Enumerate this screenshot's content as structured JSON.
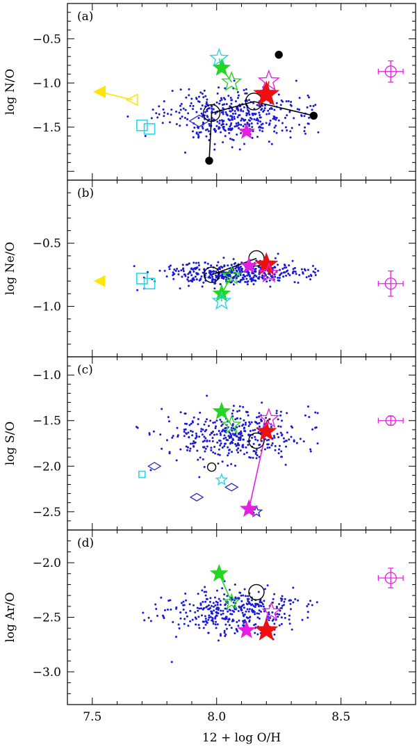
{
  "chart_data": {
    "type": "scatter",
    "xlabel": "12 + log O/H",
    "xlim": [
      7.4,
      8.8
    ],
    "xticks": [
      7.5,
      8.0,
      8.5
    ],
    "xtick_labels": [
      "7.5",
      "8.0",
      "8.5"
    ],
    "colors": {
      "background_points": "#1a1ad6",
      "black": "#000000",
      "cyan": "#22d8e8",
      "green": "#22d622",
      "magenta": "#e620e0",
      "red": "#ee1010",
      "yellow": "#ffe600",
      "navy": "#2a2ac8"
    },
    "panels": [
      {
        "tag": "(a)",
        "ylabel": "log N/O",
        "ylim": [
          -2.1,
          -0.1
        ],
        "yticks": [
          -1.5,
          -1.0,
          -0.5
        ],
        "ytick_labels": [
          "−1.5",
          "−1.0",
          "−0.5"
        ],
        "cloud": {
          "center": -1.38,
          "spread": 0.14,
          "count": 420,
          "seed": 11
        },
        "markers": [
          {
            "id": "yellow-arrow-filled",
            "shape": "triangle-left",
            "filled": true,
            "color": "yellow",
            "x": 7.53,
            "y": -1.1,
            "size": 14
          },
          {
            "id": "yellow-arrow-open",
            "shape": "triangle-left",
            "filled": false,
            "color": "yellow",
            "x": 7.66,
            "y": -1.19,
            "size": 14
          },
          {
            "id": "cyan-square-1",
            "shape": "square",
            "filled": false,
            "color": "cyan",
            "x": 7.7,
            "y": -1.48,
            "size": 15
          },
          {
            "id": "cyan-square-2",
            "shape": "square",
            "filled": false,
            "color": "cyan",
            "x": 7.73,
            "y": -1.52,
            "size": 15
          },
          {
            "id": "navy-diamond",
            "shape": "diamond",
            "filled": false,
            "color": "navy",
            "x": 7.93,
            "y": -1.43,
            "size": 14
          },
          {
            "id": "black-circle-1",
            "shape": "circle",
            "filled": false,
            "color": "black",
            "x": 7.98,
            "y": -1.34,
            "size": 12
          },
          {
            "id": "black-circle-2",
            "shape": "circle",
            "filled": false,
            "color": "black",
            "x": 8.15,
            "y": -1.21,
            "size": 12
          },
          {
            "id": "black-dot-1",
            "shape": "circle",
            "filled": true,
            "color": "black",
            "x": 7.97,
            "y": -1.88,
            "size": 5
          },
          {
            "id": "black-dot-2",
            "shape": "circle",
            "filled": true,
            "color": "black",
            "x": 8.39,
            "y": -1.37,
            "size": 5
          },
          {
            "id": "black-dot-3",
            "shape": "circle",
            "filled": true,
            "color": "black",
            "x": 8.25,
            "y": -0.68,
            "size": 5
          },
          {
            "id": "cyan-star",
            "shape": "star",
            "filled": false,
            "color": "cyan",
            "x": 8.01,
            "y": -0.72,
            "size": 13
          },
          {
            "id": "green-star-filled",
            "shape": "star",
            "filled": true,
            "color": "green",
            "x": 8.02,
            "y": -0.83,
            "size": 12
          },
          {
            "id": "green-star-open",
            "shape": "star",
            "filled": false,
            "color": "green",
            "x": 8.06,
            "y": -0.99,
            "size": 14
          },
          {
            "id": "magenta-star-open",
            "shape": "star",
            "filled": false,
            "color": "magenta",
            "x": 8.21,
            "y": -0.98,
            "size": 15
          },
          {
            "id": "red-star",
            "shape": "star",
            "filled": true,
            "color": "red",
            "x": 8.2,
            "y": -1.13,
            "size": 18
          },
          {
            "id": "magenta-star-filled",
            "shape": "star",
            "filled": true,
            "color": "magenta",
            "x": 8.12,
            "y": -1.55,
            "size": 11
          },
          {
            "id": "error-bar",
            "shape": "errorcircle",
            "filled": false,
            "color": "magenta",
            "x": 8.7,
            "y": -0.87,
            "size": 8,
            "xerr": 0.05,
            "yerr": 0.12
          }
        ],
        "lines": [
          {
            "color": "yellow",
            "x1": 7.53,
            "y1": -1.1,
            "x2": 7.66,
            "y2": -1.19
          },
          {
            "color": "black",
            "x1": 7.97,
            "y1": -1.88,
            "x2": 7.98,
            "y2": -1.34
          },
          {
            "color": "black",
            "x1": 8.15,
            "y1": -1.21,
            "x2": 8.39,
            "y2": -1.37
          },
          {
            "color": "black",
            "x1": 7.98,
            "y1": -1.34,
            "x2": 8.15,
            "y2": -1.21
          },
          {
            "color": "cyan",
            "x1": 8.01,
            "y1": -0.72,
            "x2": 8.02,
            "y2": -0.83
          },
          {
            "color": "green",
            "x1": 8.02,
            "y1": -0.83,
            "x2": 8.06,
            "y2": -0.99
          },
          {
            "color": "red",
            "x1": 8.2,
            "y1": -1.13,
            "x2": 8.21,
            "y2": -0.98
          }
        ]
      },
      {
        "tag": "(b)",
        "ylabel": "log Ne/O",
        "ylim": [
          -1.4,
          0.0
        ],
        "yticks": [
          -1.0,
          -0.5
        ],
        "ytick_labels": [
          "−1.0",
          "−0.5"
        ],
        "cloud": {
          "center": -0.74,
          "spread": 0.045,
          "count": 420,
          "seed": 23
        },
        "markers": [
          {
            "id": "yellow-arrow",
            "shape": "triangle-left",
            "filled": true,
            "color": "yellow",
            "x": 7.53,
            "y": -0.8,
            "size": 13
          },
          {
            "id": "cyan-square-1",
            "shape": "square",
            "filled": false,
            "color": "cyan",
            "x": 7.7,
            "y": -0.78,
            "size": 15
          },
          {
            "id": "cyan-square-2",
            "shape": "square",
            "filled": false,
            "color": "cyan",
            "x": 7.73,
            "y": -0.82,
            "size": 15
          },
          {
            "id": "black-circle-1",
            "shape": "circle",
            "filled": false,
            "color": "black",
            "x": 7.98,
            "y": -0.75,
            "size": 11
          },
          {
            "id": "black-circle-2",
            "shape": "circle",
            "filled": false,
            "color": "black",
            "x": 8.16,
            "y": -0.62,
            "size": 11
          },
          {
            "id": "green-star-open",
            "shape": "star",
            "filled": false,
            "color": "green",
            "x": 8.06,
            "y": -0.76,
            "size": 13
          },
          {
            "id": "green-star-filled",
            "shape": "star",
            "filled": true,
            "color": "green",
            "x": 8.02,
            "y": -0.9,
            "size": 12
          },
          {
            "id": "cyan-star",
            "shape": "star",
            "filled": false,
            "color": "cyan",
            "x": 8.02,
            "y": -0.96,
            "size": 13
          },
          {
            "id": "magenta-star-filled",
            "shape": "star",
            "filled": true,
            "color": "magenta",
            "x": 8.13,
            "y": -0.68,
            "size": 11
          },
          {
            "id": "red-star",
            "shape": "star",
            "filled": true,
            "color": "red",
            "x": 8.2,
            "y": -0.67,
            "size": 16
          },
          {
            "id": "magenta-star-open",
            "shape": "star",
            "filled": false,
            "color": "magenta",
            "x": 8.21,
            "y": -0.74,
            "size": 14
          },
          {
            "id": "error-bar",
            "shape": "errorcircle",
            "filled": false,
            "color": "magenta",
            "x": 8.7,
            "y": -0.82,
            "size": 8,
            "xerr": 0.05,
            "yerr": 0.1
          }
        ],
        "lines": [
          {
            "color": "black",
            "x1": 7.98,
            "y1": -0.75,
            "x2": 8.16,
            "y2": -0.62
          },
          {
            "color": "cyan",
            "x1": 8.02,
            "y1": -0.96,
            "x2": 8.02,
            "y2": -0.9
          },
          {
            "color": "green",
            "x1": 8.02,
            "y1": -0.9,
            "x2": 8.06,
            "y2": -0.76
          },
          {
            "color": "red",
            "x1": 8.2,
            "y1": -0.67,
            "x2": 8.21,
            "y2": -0.74
          }
        ]
      },
      {
        "tag": "(c)",
        "ylabel": "log S/O",
        "ylim": [
          -2.7,
          -0.8
        ],
        "yticks": [
          -2.5,
          -2.0,
          -1.5,
          -1.0
        ],
        "ytick_labels": [
          "−2.5",
          "−2.0",
          "−1.5",
          "−1.0"
        ],
        "cloud": {
          "center": -1.65,
          "spread": 0.14,
          "count": 380,
          "seed": 37
        },
        "markers": [
          {
            "id": "cyan-square",
            "shape": "square",
            "filled": false,
            "color": "cyan",
            "x": 7.7,
            "y": -2.09,
            "size": 9
          },
          {
            "id": "navy-diamond-1",
            "shape": "diamond",
            "filled": false,
            "color": "navy",
            "x": 7.75,
            "y": -2.0,
            "size": 9
          },
          {
            "id": "navy-diamond-2",
            "shape": "diamond",
            "filled": false,
            "color": "navy",
            "x": 7.92,
            "y": -2.34,
            "size": 9
          },
          {
            "id": "navy-diamond-3",
            "shape": "diamond",
            "filled": false,
            "color": "navy",
            "x": 8.06,
            "y": -2.23,
            "size": 9
          },
          {
            "id": "black-circle-small",
            "shape": "circle",
            "filled": false,
            "color": "black",
            "x": 7.98,
            "y": -2.01,
            "size": 6
          },
          {
            "id": "cyan-star-small",
            "shape": "star",
            "filled": false,
            "color": "cyan",
            "x": 8.02,
            "y": -2.15,
            "size": 8
          },
          {
            "id": "navy-star-small",
            "shape": "star",
            "filled": false,
            "color": "navy",
            "x": 8.16,
            "y": -2.5,
            "size": 8
          },
          {
            "id": "black-circle-1",
            "shape": "circle",
            "filled": false,
            "color": "black",
            "x": 8.16,
            "y": -1.72,
            "size": 11
          },
          {
            "id": "green-star-filled",
            "shape": "star",
            "filled": true,
            "color": "green",
            "x": 8.02,
            "y": -1.4,
            "size": 12
          },
          {
            "id": "green-star-open",
            "shape": "star",
            "filled": false,
            "color": "green",
            "x": 8.06,
            "y": -1.55,
            "size": 13
          },
          {
            "id": "red-star",
            "shape": "star",
            "filled": true,
            "color": "red",
            "x": 8.2,
            "y": -1.62,
            "size": 14
          },
          {
            "id": "magenta-star-open",
            "shape": "star",
            "filled": false,
            "color": "magenta",
            "x": 8.21,
            "y": -1.48,
            "size": 14
          },
          {
            "id": "magenta-star-filled",
            "shape": "star",
            "filled": true,
            "color": "magenta",
            "x": 8.13,
            "y": -2.47,
            "size": 12
          },
          {
            "id": "error-bar",
            "shape": "errorcircle",
            "filled": false,
            "color": "magenta",
            "x": 8.7,
            "y": -1.5,
            "size": 7,
            "xerr": 0.05,
            "yerr": 0.05
          }
        ],
        "lines": [
          {
            "color": "green",
            "x1": 8.02,
            "y1": -1.4,
            "x2": 8.06,
            "y2": -1.55
          },
          {
            "color": "magenta",
            "x1": 8.13,
            "y1": -2.47,
            "x2": 8.21,
            "y2": -1.48
          },
          {
            "color": "red",
            "x1": 8.2,
            "y1": -1.62,
            "x2": 8.21,
            "y2": -1.48
          }
        ]
      },
      {
        "tag": "(d)",
        "ylabel": "log Ar/O",
        "ylim": [
          -3.3,
          -1.7
        ],
        "yticks": [
          -3.0,
          -2.5,
          -2.0
        ],
        "ytick_labels": [
          "−3.0",
          "−2.5",
          "−2.0"
        ],
        "cloud": {
          "center": -2.46,
          "spread": 0.1,
          "count": 380,
          "seed": 51
        },
        "markers": [
          {
            "id": "black-circle-1",
            "shape": "circle",
            "filled": false,
            "color": "black",
            "x": 8.16,
            "y": -2.27,
            "size": 11
          },
          {
            "id": "green-star-filled",
            "shape": "star",
            "filled": true,
            "color": "green",
            "x": 8.01,
            "y": -2.1,
            "size": 12
          },
          {
            "id": "green-star-open",
            "shape": "star",
            "filled": false,
            "color": "green",
            "x": 8.06,
            "y": -2.36,
            "size": 11
          },
          {
            "id": "magenta-star-open",
            "shape": "star",
            "filled": false,
            "color": "magenta",
            "x": 8.22,
            "y": -2.45,
            "size": 13
          },
          {
            "id": "magenta-star-filled",
            "shape": "star",
            "filled": true,
            "color": "magenta",
            "x": 8.12,
            "y": -2.62,
            "size": 12
          },
          {
            "id": "red-star",
            "shape": "star",
            "filled": true,
            "color": "red",
            "x": 8.2,
            "y": -2.62,
            "size": 16
          },
          {
            "id": "error-bar",
            "shape": "errorcircle",
            "filled": false,
            "color": "magenta",
            "x": 8.7,
            "y": -2.14,
            "size": 8,
            "xerr": 0.05,
            "yerr": 0.09
          }
        ],
        "lines": [
          {
            "color": "green",
            "x1": 8.01,
            "y1": -2.1,
            "x2": 8.06,
            "y2": -2.36
          }
        ]
      }
    ]
  }
}
